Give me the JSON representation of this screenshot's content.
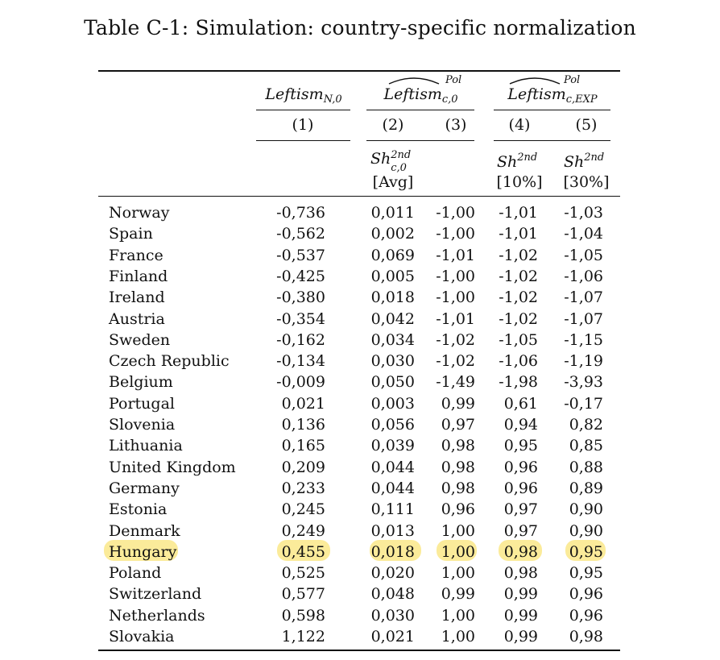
{
  "title": "Table C-1: Simulation: country-specific normalization",
  "header": {
    "col1_main": "Leftism",
    "col1_sub": "N,0",
    "col23_main": "Leftism",
    "col23_sub": "c,0",
    "col23_sup": "Pol",
    "col45_main": "Leftism",
    "col45_sub": "c,EXP",
    "col45_sup": "Pol",
    "nums": [
      "(1)",
      "(2)",
      "(3)",
      "(4)",
      "(5)"
    ],
    "sh_main": "Sh",
    "sh_sup": "2nd",
    "sh_sub_c0": "c,0",
    "sh_labels": [
      "[Avg]",
      "[10%]",
      "[30%]"
    ]
  },
  "rows": [
    {
      "country": "Norway",
      "v": [
        "-0,736",
        "0,011",
        "-1,00",
        "-1,01",
        "-1,03"
      ]
    },
    {
      "country": "Spain",
      "v": [
        "-0,562",
        "0,002",
        "-1,00",
        "-1,01",
        "-1,04"
      ]
    },
    {
      "country": "France",
      "v": [
        "-0,537",
        "0,069",
        "-1,01",
        "-1,02",
        "-1,05"
      ]
    },
    {
      "country": "Finland",
      "v": [
        "-0,425",
        "0,005",
        "-1,00",
        "-1,02",
        "-1,06"
      ]
    },
    {
      "country": "Ireland",
      "v": [
        "-0,380",
        "0,018",
        "-1,00",
        "-1,02",
        "-1,07"
      ]
    },
    {
      "country": "Austria",
      "v": [
        "-0,354",
        "0,042",
        "-1,01",
        "-1,02",
        "-1,07"
      ]
    },
    {
      "country": "Sweden",
      "v": [
        "-0,162",
        "0,034",
        "-1,02",
        "-1,05",
        "-1,15"
      ]
    },
    {
      "country": "Czech Republic",
      "v": [
        "-0,134",
        "0,030",
        "-1,02",
        "-1,06",
        "-1,19"
      ]
    },
    {
      "country": "Belgium",
      "v": [
        "-0,009",
        "0,050",
        "-1,49",
        "-1,98",
        "-3,93"
      ]
    },
    {
      "country": "Portugal",
      "v": [
        "0,021",
        "0,003",
        "0,99",
        "0,61",
        "-0,17"
      ]
    },
    {
      "country": "Slovenia",
      "v": [
        "0,136",
        "0,056",
        "0,97",
        "0,94",
        "0,82"
      ]
    },
    {
      "country": "Lithuania",
      "v": [
        "0,165",
        "0,039",
        "0,98",
        "0,95",
        "0,85"
      ]
    },
    {
      "country": "United Kingdom",
      "v": [
        "0,209",
        "0,044",
        "0,98",
        "0,96",
        "0,88"
      ]
    },
    {
      "country": "Germany",
      "v": [
        "0,233",
        "0,044",
        "0,98",
        "0,96",
        "0,89"
      ]
    },
    {
      "country": "Estonia",
      "v": [
        "0,245",
        "0,111",
        "0,96",
        "0,97",
        "0,90"
      ]
    },
    {
      "country": "Denmark",
      "v": [
        "0,249",
        "0,013",
        "1,00",
        "0,97",
        "0,90"
      ]
    },
    {
      "country": "Hungary",
      "v": [
        "0,455",
        "0,018",
        "1,00",
        "0,98",
        "0,95"
      ],
      "highlight": true
    },
    {
      "country": "Poland",
      "v": [
        "0,525",
        "0,020",
        "1,00",
        "0,98",
        "0,95"
      ]
    },
    {
      "country": "Switzerland",
      "v": [
        "0,577",
        "0,048",
        "0,99",
        "0,99",
        "0,96"
      ]
    },
    {
      "country": "Netherlands",
      "v": [
        "0,598",
        "0,030",
        "1,00",
        "0,99",
        "0,96"
      ]
    },
    {
      "country": "Slovakia",
      "v": [
        "1,122",
        "0,021",
        "1,00",
        "0,99",
        "0,98"
      ]
    }
  ],
  "highlight_color": "#fbeb9a"
}
